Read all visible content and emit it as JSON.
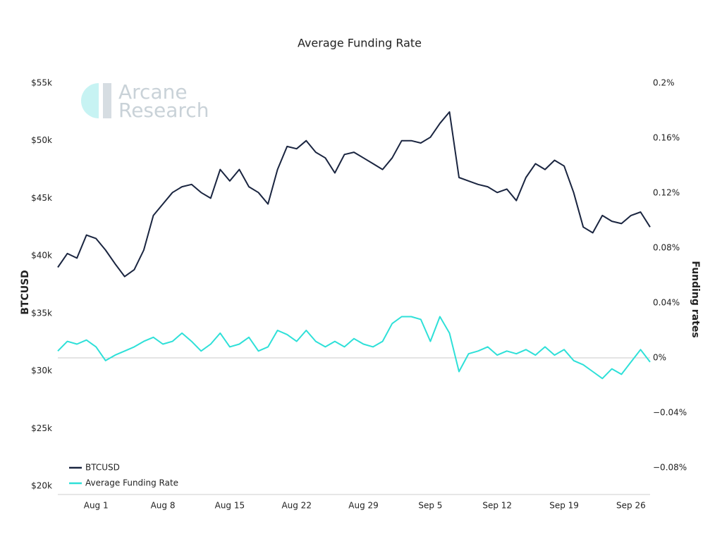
{
  "chart_data": {
    "type": "line",
    "title": "Average Funding Rate",
    "watermark": [
      "Arcane",
      "Research"
    ],
    "ylabel": "BTCUSD",
    "y2label": "Funding rates",
    "categories": [
      null,
      null,
      null,
      null,
      "Aug 1",
      null,
      null,
      null,
      null,
      null,
      null,
      "Aug 8",
      null,
      null,
      null,
      null,
      null,
      null,
      "Aug 15",
      null,
      null,
      null,
      null,
      null,
      null,
      "Aug 22",
      null,
      null,
      null,
      null,
      null,
      null,
      "Aug 29",
      null,
      null,
      null,
      null,
      null,
      null,
      "Sep 5",
      null,
      null,
      null,
      null,
      null,
      null,
      "Sep 12",
      null,
      null,
      null,
      null,
      null,
      null,
      "Sep 19",
      null,
      null,
      null,
      null,
      null,
      null,
      "Sep 26",
      null,
      null
    ],
    "series": [
      {
        "name": "BTCUSD",
        "color": "#1a2540",
        "axis": "y",
        "values": [
          39000,
          40200,
          39800,
          41800,
          41500,
          40500,
          39300,
          38200,
          38800,
          40500,
          43500,
          44500,
          45500,
          46000,
          46200,
          45500,
          45000,
          47500,
          46500,
          47500,
          46000,
          45500,
          44500,
          47500,
          49500,
          49300,
          50000,
          49000,
          48500,
          47200,
          48800,
          49000,
          48500,
          48000,
          47500,
          48500,
          50000,
          50000,
          49800,
          50300,
          51500,
          52500,
          46800,
          46500,
          46200,
          46000,
          45500,
          45800,
          44800,
          46800,
          48000,
          47500,
          48300,
          47800,
          45500,
          42500,
          42000,
          43500,
          43000,
          42800,
          43500,
          43800,
          42500
        ]
      },
      {
        "name": "Average Funding Rate",
        "color": "#2ee0d8",
        "axis": "y2",
        "values": [
          0.005,
          0.012,
          0.01,
          0.013,
          0.008,
          -0.002,
          0.002,
          0.005,
          0.008,
          0.012,
          0.015,
          0.01,
          0.012,
          0.018,
          0.012,
          0.005,
          0.01,
          0.018,
          0.008,
          0.01,
          0.015,
          0.005,
          0.008,
          0.02,
          0.017,
          0.012,
          0.02,
          0.012,
          0.008,
          0.012,
          0.008,
          0.014,
          0.01,
          0.008,
          0.012,
          0.025,
          0.03,
          0.03,
          0.028,
          0.012,
          0.03,
          0.018,
          -0.01,
          0.003,
          0.005,
          0.008,
          0.002,
          0.005,
          0.003,
          0.006,
          0.002,
          0.008,
          0.002,
          0.006,
          -0.002,
          -0.005,
          -0.01,
          -0.015,
          -0.008,
          -0.012,
          -0.003,
          0.006,
          -0.003
        ]
      }
    ],
    "ylim": [
      20000,
      55000
    ],
    "yticks": [
      {
        "value": 20000,
        "label": "$20k"
      },
      {
        "value": 25000,
        "label": "$25k"
      },
      {
        "value": 30000,
        "label": "$30k"
      },
      {
        "value": 35000,
        "label": "$35k"
      },
      {
        "value": 40000,
        "label": "$40k"
      },
      {
        "value": 45000,
        "label": "$45k"
      },
      {
        "value": 50000,
        "label": "$50k"
      },
      {
        "value": 55000,
        "label": "$55k"
      }
    ],
    "y2lim": [
      -0.0933,
      0.2
    ],
    "y2ticks": [
      {
        "value": -0.08,
        "label": "−0.08%"
      },
      {
        "value": -0.04,
        "label": "−0.04%"
      },
      {
        "value": 0,
        "label": "0%"
      },
      {
        "value": 0.04,
        "label": "0.04%"
      },
      {
        "value": 0.08,
        "label": "0.08%"
      },
      {
        "value": 0.12,
        "label": "0.12%"
      },
      {
        "value": 0.16,
        "label": "0.16%"
      },
      {
        "value": 0.2,
        "label": "0.2%"
      }
    ],
    "zero_line": true,
    "legend": "lower left"
  }
}
